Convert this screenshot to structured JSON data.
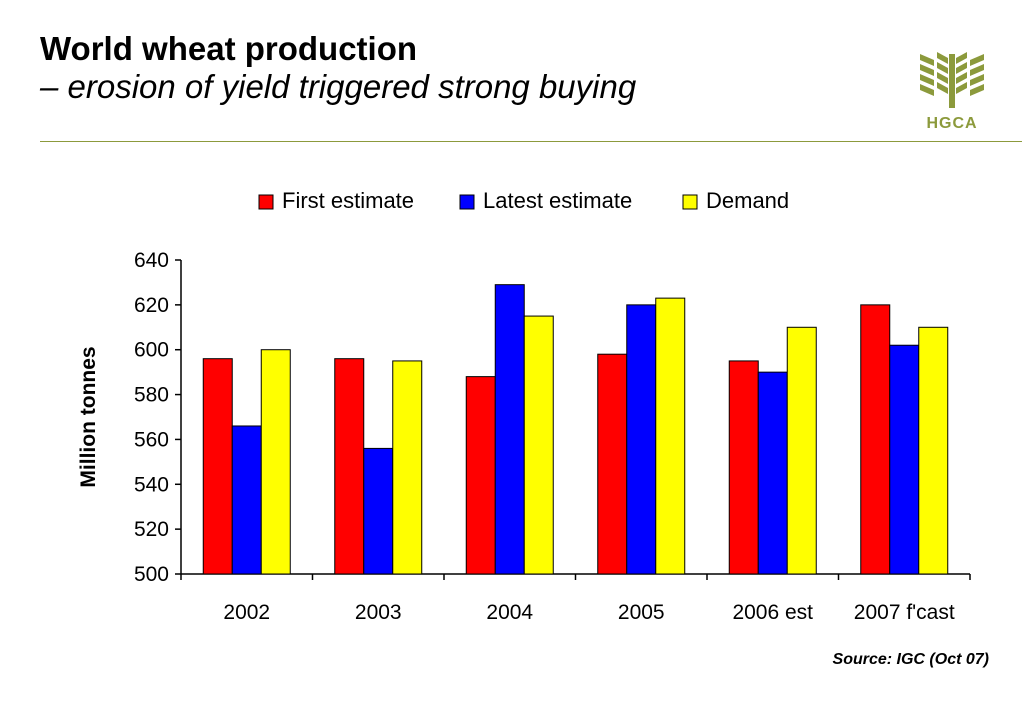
{
  "header": {
    "title": "World wheat production",
    "subtitle": "– erosion of yield triggered strong buying"
  },
  "logo": {
    "text": "HGCA",
    "icon": "wheat-sheaf-icon",
    "color": "#8c9a3c"
  },
  "chart_data": {
    "type": "bar",
    "categories": [
      "2002",
      "2003",
      "2004",
      "2005",
      "2006 est",
      "2007 f'cast"
    ],
    "series": [
      {
        "name": "First estimate",
        "color": "#ff0000",
        "values": [
          596,
          596,
          588,
          598,
          595,
          620
        ]
      },
      {
        "name": "Latest estimate",
        "color": "#0000ff",
        "values": [
          566,
          556,
          629,
          620,
          590,
          602
        ]
      },
      {
        "name": "Demand",
        "color": "#ffff00",
        "values": [
          600,
          595,
          615,
          623,
          610,
          610
        ]
      }
    ],
    "title": "",
    "xlabel": "",
    "ylabel": "Million tonnes",
    "ylim": [
      500,
      640
    ],
    "yticks": [
      500,
      520,
      540,
      560,
      580,
      600,
      620,
      640
    ],
    "grid": false,
    "legend_position": "top-center"
  },
  "footer": {
    "source": "Source: IGC (Oct 07)"
  }
}
